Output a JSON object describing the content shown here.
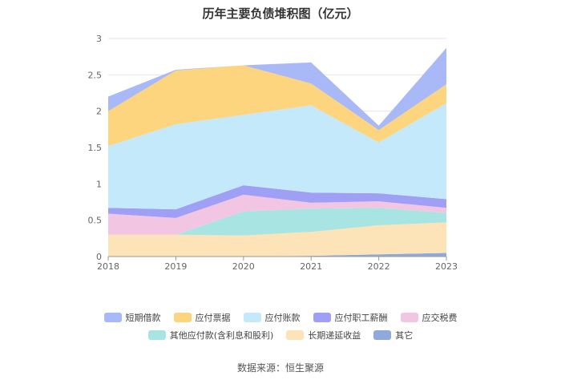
{
  "chart_data": {
    "type": "area",
    "stacked": true,
    "title": "历年主要负债堆积图（亿元）",
    "x": [
      "2018",
      "2019",
      "2020",
      "2021",
      "2022",
      "2023"
    ],
    "ylim": [
      0,
      3
    ],
    "yticks": [
      "0",
      "0.5",
      "1",
      "1.5",
      "2",
      "2.5",
      "3"
    ],
    "grid": true,
    "legend_position": "bottom",
    "series": [
      {
        "name": "其它",
        "color": "#8fa9dc",
        "values": [
          0.0,
          0.0,
          0.0,
          0.01,
          0.03,
          0.05
        ]
      },
      {
        "name": "长期递延收益",
        "color": "#fde4b8",
        "values": [
          0.3,
          0.3,
          0.29,
          0.33,
          0.4,
          0.42
        ]
      },
      {
        "name": "其他应付款(含利息和股利)",
        "color": "#a8e4e2",
        "values": [
          0.0,
          0.0,
          0.33,
          0.32,
          0.24,
          0.13
        ]
      },
      {
        "name": "应交税费",
        "color": "#f2c6e2",
        "values": [
          0.29,
          0.23,
          0.23,
          0.08,
          0.09,
          0.07
        ]
      },
      {
        "name": "应付职工薪酬",
        "color": "#9f9ff5",
        "values": [
          0.08,
          0.12,
          0.13,
          0.14,
          0.11,
          0.12
        ]
      },
      {
        "name": "应付账款",
        "color": "#c4e9fb",
        "values": [
          0.85,
          1.17,
          0.97,
          1.2,
          0.7,
          1.32
        ]
      },
      {
        "name": "应付票据",
        "color": "#fdd57f",
        "values": [
          0.48,
          0.74,
          0.68,
          0.3,
          0.17,
          0.26
        ]
      },
      {
        "name": "短期借款",
        "color": "#a9b9f7",
        "values": [
          0.2,
          0.01,
          0.0,
          0.29,
          0.06,
          0.5
        ]
      }
    ]
  },
  "legend": {
    "row1": [
      "短期借款",
      "应付票据",
      "应付账款",
      "应付职工薪酬",
      "应交税费"
    ],
    "row2": [
      "其他应付款(含利息和股利)",
      "长期递延收益",
      "其它"
    ]
  },
  "source": "数据来源：恒生聚源"
}
